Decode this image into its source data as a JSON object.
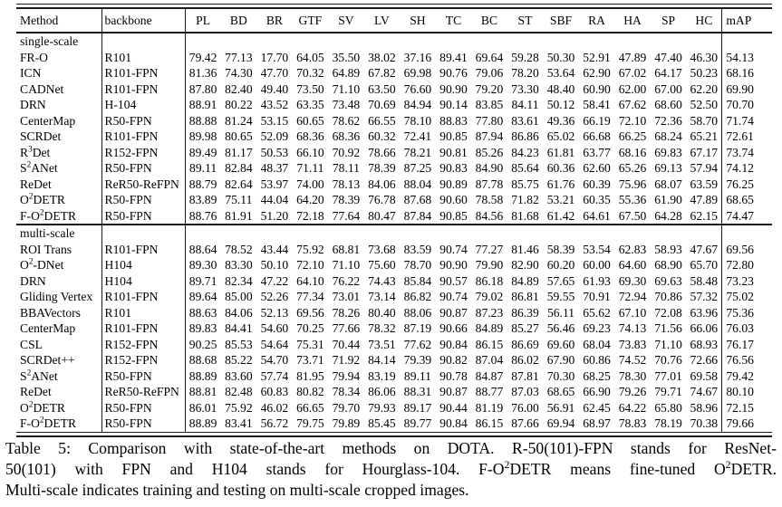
{
  "table": {
    "columns": [
      "Method",
      "backbone",
      "PL",
      "BD",
      "BR",
      "GTF",
      "SV",
      "LV",
      "SH",
      "TC",
      "BC",
      "ST",
      "SBF",
      "RA",
      "HA",
      "SP",
      "HC",
      "mAP"
    ],
    "sections": [
      {
        "label": "single-scale",
        "rows": [
          {
            "method": "FR-O",
            "backbone": "R101",
            "scores": [
              "79.42",
              "77.13",
              "17.70",
              "64.05",
              "35.50",
              "38.02",
              "37.16",
              "89.41",
              "69.64",
              "59.28",
              "50.30",
              "52.91",
              "47.89",
              "47.40",
              "46.30"
            ],
            "map": "54.13"
          },
          {
            "method": "ICN",
            "backbone": "R101-FPN",
            "scores": [
              "81.36",
              "74.30",
              "47.70",
              "70.32",
              "64.89",
              "67.82",
              "69.98",
              "90.76",
              "79.06",
              "78.20",
              "53.64",
              "62.90",
              "67.02",
              "64.17",
              "50.23"
            ],
            "map": "68.16"
          },
          {
            "method": "CADNet",
            "backbone": "R101-FPN",
            "scores": [
              "87.80",
              "82.40",
              "49.40",
              "73.50",
              "71.10",
              "63.50",
              "76.60",
              "90.90",
              "79.20",
              "73.30",
              "48.40",
              "60.90",
              "62.00",
              "67.00",
              "62.20"
            ],
            "map": "69.90"
          },
          {
            "method": "DRN",
            "backbone": "H-104",
            "scores": [
              "88.91",
              "80.22",
              "43.52",
              "63.35",
              "73.48",
              "70.69",
              "84.94",
              "90.14",
              "83.85",
              "84.11",
              "50.12",
              "58.41",
              "67.62",
              "68.60",
              "52.50"
            ],
            "map": "70.70"
          },
          {
            "method": "CenterMap",
            "backbone": "R50-FPN",
            "scores": [
              "88.88",
              "81.24",
              "53.15",
              "60.65",
              "78.62",
              "66.55",
              "78.10",
              "88.83",
              "77.80",
              "83.61",
              "49.36",
              "66.19",
              "72.10",
              "72.36",
              "58.70"
            ],
            "map": "71.74"
          },
          {
            "method": "SCRDet",
            "backbone": "R101-FPN",
            "scores": [
              "89.98",
              "80.65",
              "52.09",
              "68.36",
              "68.36",
              "60.32",
              "72.41",
              "90.85",
              "87.94",
              "86.86",
              "65.02",
              "66.68",
              "66.25",
              "68.24",
              "65.21"
            ],
            "map": "72.61"
          },
          {
            "method": "R^3Det",
            "backbone": "R152-FPN",
            "scores": [
              "89.49",
              "81.17",
              "50.53",
              "66.10",
              "70.92",
              "78.66",
              "78.21",
              "90.81",
              "85.26",
              "84.23",
              "61.81",
              "63.77",
              "68.16",
              "69.83",
              "67.17"
            ],
            "map": "73.74"
          },
          {
            "method": "S^2ANet",
            "backbone": "R50-FPN",
            "scores": [
              "89.11",
              "82.84",
              "48.37",
              "71.11",
              "78.11",
              "78.39",
              "87.25",
              "90.83",
              "84.90",
              "85.64",
              "60.36",
              "62.60",
              "65.26",
              "69.13",
              "57.94"
            ],
            "map": "74.12"
          },
          {
            "method": "ReDet",
            "backbone": "ReR50-ReFPN",
            "scores": [
              "88.79",
              "82.64",
              "53.97",
              "74.00",
              "78.13",
              "84.06",
              "88.04",
              "90.89",
              "87.78",
              "85.75",
              "61.76",
              "60.39",
              "75.96",
              "68.07",
              "63.59"
            ],
            "map": "76.25"
          },
          {
            "method": "O^2DETR",
            "backbone": "R50-FPN",
            "scores": [
              "83.89",
              "75.11",
              "44.04",
              "64.20",
              "78.39",
              "76.78",
              "87.68",
              "90.60",
              "78.58",
              "71.82",
              "53.21",
              "60.35",
              "55.36",
              "61.90",
              "47.89"
            ],
            "map": "68.65"
          },
          {
            "method": "F-O^2DETR",
            "backbone": "R50-FPN",
            "scores": [
              "88.76",
              "81.91",
              "51.20",
              "72.18",
              "77.64",
              "80.47",
              "87.84",
              "90.85",
              "84.56",
              "81.68",
              "61.42",
              "64.61",
              "67.50",
              "64.28",
              "62.15"
            ],
            "map": "74.47"
          }
        ]
      },
      {
        "label": "multi-scale",
        "rows": [
          {
            "method": "ROI Trans",
            "backbone": "R101-FPN",
            "scores": [
              "88.64",
              "78.52",
              "43.44",
              "75.92",
              "68.81",
              "73.68",
              "83.59",
              "90.74",
              "77.27",
              "81.46",
              "58.39",
              "53.54",
              "62.83",
              "58.93",
              "47.67"
            ],
            "map": "69.56"
          },
          {
            "method": "O^2-DNet",
            "backbone": "H104",
            "scores": [
              "89.30",
              "83.30",
              "50.10",
              "72.10",
              "71.10",
              "75.60",
              "78.70",
              "90.90",
              "79.90",
              "82.90",
              "60.20",
              "60.00",
              "64.60",
              "68.90",
              "65.70"
            ],
            "map": "72.80"
          },
          {
            "method": "DRN",
            "backbone": "H104",
            "scores": [
              "89.71",
              "82.34",
              "47.22",
              "64.10",
              "76.22",
              "74.43",
              "85.84",
              "90.57",
              "86.18",
              "84.89",
              "57.65",
              "61.93",
              "69.30",
              "69.63",
              "58.48"
            ],
            "map": "73.23"
          },
          {
            "method": "Gliding Vertex",
            "backbone": "R101-FPN",
            "scores": [
              "89.64",
              "85.00",
              "52.26",
              "77.34",
              "73.01",
              "73.14",
              "86.82",
              "90.74",
              "79.02",
              "86.81",
              "59.55",
              "70.91",
              "72.94",
              "70.86",
              "57.32"
            ],
            "map": "75.02"
          },
          {
            "method": "BBAVectors",
            "backbone": "R101",
            "scores": [
              "88.63",
              "84.06",
              "52.13",
              "69.56",
              "78.26",
              "80.40",
              "88.06",
              "90.87",
              "87.23",
              "86.39",
              "56.11",
              "65.62",
              "67.10",
              "72.08",
              "63.96"
            ],
            "map": "75.36"
          },
          {
            "method": "CenterMap",
            "backbone": "R101-FPN",
            "scores": [
              "89.83",
              "84.41",
              "54.60",
              "70.25",
              "77.66",
              "78.32",
              "87.19",
              "90.66",
              "84.89",
              "85.27",
              "56.46",
              "69.23",
              "74.13",
              "71.56",
              "66.06"
            ],
            "map": "76.03"
          },
          {
            "method": "CSL",
            "backbone": "R152-FPN",
            "scores": [
              "90.25",
              "85.53",
              "54.64",
              "75.31",
              "70.44",
              "73.51",
              "77.62",
              "90.84",
              "86.15",
              "86.69",
              "69.60",
              "68.04",
              "73.83",
              "71.10",
              "68.93"
            ],
            "map": "76.17"
          },
          {
            "method": "SCRDet++",
            "backbone": "R152-FPN",
            "scores": [
              "88.68",
              "85.22",
              "54.70",
              "73.71",
              "71.92",
              "84.14",
              "79.39",
              "90.82",
              "87.04",
              "86.02",
              "67.90",
              "60.86",
              "74.52",
              "70.76",
              "72.66"
            ],
            "map": "76.56"
          },
          {
            "method": "S^2ANet",
            "backbone": "R50-FPN",
            "scores": [
              "88.89",
              "83.60",
              "57.74",
              "81.95",
              "79.94",
              "83.19",
              "89.11",
              "90.78",
              "84.87",
              "87.81",
              "70.30",
              "68.25",
              "78.30",
              "77.01",
              "69.58"
            ],
            "map": "79.42"
          },
          {
            "method": "ReDet",
            "backbone": "ReR50-ReFPN",
            "scores": [
              "88.81",
              "82.48",
              "60.83",
              "80.82",
              "78.34",
              "86.06",
              "88.31",
              "90.87",
              "88.77",
              "87.03",
              "68.65",
              "66.90",
              "79.26",
              "79.71",
              "74.67"
            ],
            "map": "80.10"
          },
          {
            "method": "O^2DETR",
            "backbone": "R50-FPN",
            "scores": [
              "86.01",
              "75.92",
              "46.02",
              "66.65",
              "79.70",
              "79.93",
              "89.17",
              "90.44",
              "81.19",
              "76.00",
              "56.91",
              "62.45",
              "64.22",
              "65.80",
              "58.96"
            ],
            "map": "72.15"
          },
          {
            "method": "F-O^2DETR",
            "backbone": "R50-FPN",
            "scores": [
              "88.89",
              "83.41",
              "56.72",
              "79.75",
              "79.89",
              "85.45",
              "89.77",
              "90.84",
              "86.15",
              "87.66",
              "69.94",
              "68.97",
              "78.83",
              "78.19",
              "70.38"
            ],
            "map": "79.66"
          }
        ]
      }
    ]
  },
  "caption": {
    "lines": [
      "Table 5: Comparison with state-of-the-art methods on DOTA. R-50(101)-FPN stands for ResNet-",
      "50(101) with FPN and H104 stands for Hourglass-104. F-O^2DETR means fine-tuned O^2DETR.",
      "Multi-scale indicates training and testing on multi-scale cropped images."
    ]
  }
}
